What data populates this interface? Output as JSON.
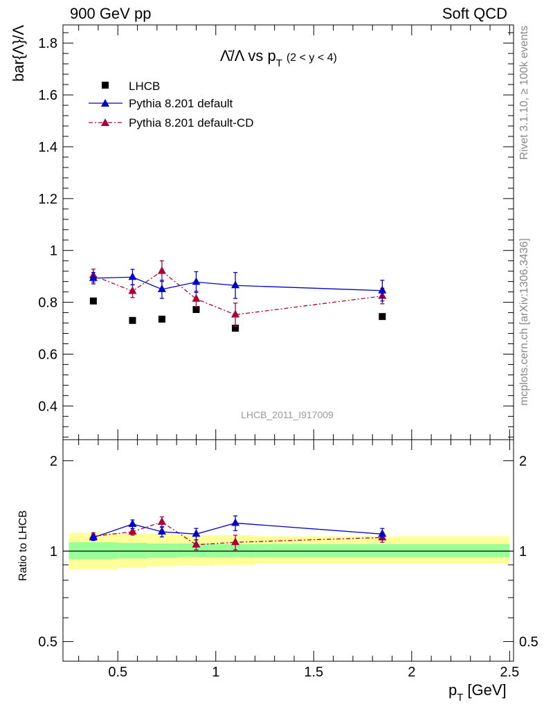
{
  "header": {
    "left": "900 GeV pp",
    "right": "Soft QCD"
  },
  "side_labels": {
    "rivet": "Rivet 3.1.10, ≥ 100k events",
    "site": "mcplots.cern.ch [arXiv:1306.3436]"
  },
  "watermark": "LHCB_2011_I917009",
  "colors": {
    "data": "#000000",
    "default": "#0000cc",
    "cd": "#aa0033",
    "band_outer": "#ffff99",
    "band_inner": "#99ff99"
  },
  "chart_data": [
    {
      "type": "scatter",
      "title_main": "Λ̄/Λ vs p",
      "title_sub": "T",
      "title_range": "(2 < y < 4)",
      "ylabel": "bar{Λ}/Λ",
      "xlim": [
        0.22,
        2.52
      ],
      "ylim": [
        0.27,
        1.87
      ],
      "yticks": [
        0.4,
        0.6,
        0.8,
        1.0,
        1.2,
        1.4,
        1.6,
        1.8
      ],
      "ytick_labels": [
        "0.4",
        "0.6",
        "0.8",
        "1",
        "1.2",
        "1.4",
        "1.6",
        "1.8"
      ],
      "legend": {
        "placement": "top-left",
        "entries": [
          "LHCB",
          "Pythia 8.201 default",
          "Pythia 8.201 default-CD"
        ]
      },
      "series": [
        {
          "name": "LHCB",
          "marker": "square",
          "x": [
            0.375,
            0.575,
            0.725,
            0.9,
            1.1,
            1.85
          ],
          "y": [
            0.805,
            0.73,
            0.735,
            0.772,
            0.7,
            0.745
          ]
        },
        {
          "name": "Pythia 8.201 default",
          "marker": "triangle",
          "line": "solid",
          "x": [
            0.375,
            0.575,
            0.725,
            0.9,
            1.1,
            1.85
          ],
          "y": [
            0.893,
            0.897,
            0.85,
            0.878,
            0.865,
            0.845
          ],
          "err": [
            0.022,
            0.03,
            0.035,
            0.04,
            0.05,
            0.04
          ]
        },
        {
          "name": "Pythia 8.201 default-CD",
          "marker": "triangle",
          "line": "dashdot",
          "x": [
            0.375,
            0.575,
            0.725,
            0.9,
            1.1,
            1.85
          ],
          "y": [
            0.903,
            0.843,
            0.92,
            0.813,
            0.752,
            0.824
          ],
          "err": [
            0.025,
            0.025,
            0.04,
            0.03,
            0.045,
            0.03
          ]
        }
      ]
    },
    {
      "type": "scatter",
      "ylabel": "Ratio to LHCB",
      "xlabel": "p",
      "xlabel_sub": "T",
      "xlabel_unit": "[GeV]",
      "xlim": [
        0.22,
        2.52
      ],
      "ylim": [
        0.43,
        2.35
      ],
      "log_y": true,
      "xticks": [
        0.5,
        1.0,
        1.5,
        2.0,
        2.5
      ],
      "xtick_labels": [
        "0.5",
        "1",
        "1.5",
        "2",
        "2.5"
      ],
      "yticks": [
        0.5,
        1.0,
        2.0
      ],
      "ytick_labels": [
        "0.5",
        "1",
        "2"
      ],
      "uncertainty_band": {
        "x_edges": [
          0.25,
          0.5,
          0.65,
          0.8,
          1.0,
          1.2,
          2.5
        ],
        "outer": [
          [
            0.87,
            1.15
          ],
          [
            0.88,
            1.14
          ],
          [
            0.89,
            1.14
          ],
          [
            0.895,
            1.13
          ],
          [
            0.9,
            1.13
          ],
          [
            0.91,
            1.12
          ]
        ],
        "inner": [
          [
            0.94,
            1.07
          ],
          [
            0.945,
            1.065
          ],
          [
            0.95,
            1.06
          ],
          [
            0.955,
            1.06
          ],
          [
            0.955,
            1.055
          ],
          [
            0.955,
            1.055
          ]
        ]
      },
      "series": [
        {
          "name": "Pythia 8.201 default",
          "marker": "triangle",
          "line": "solid",
          "x": [
            0.375,
            0.575,
            0.725,
            0.9,
            1.1,
            1.85
          ],
          "y": [
            1.11,
            1.23,
            1.16,
            1.14,
            1.24,
            1.14
          ],
          "err": [
            0.025,
            0.04,
            0.045,
            0.05,
            0.07,
            0.05
          ]
        },
        {
          "name": "Pythia 8.201 default-CD",
          "marker": "triangle",
          "line": "dashdot",
          "x": [
            0.375,
            0.575,
            0.725,
            0.9,
            1.1,
            1.85
          ],
          "y": [
            1.12,
            1.16,
            1.25,
            1.05,
            1.07,
            1.11
          ],
          "err": [
            0.03,
            0.03,
            0.05,
            0.04,
            0.06,
            0.04
          ]
        }
      ]
    }
  ]
}
